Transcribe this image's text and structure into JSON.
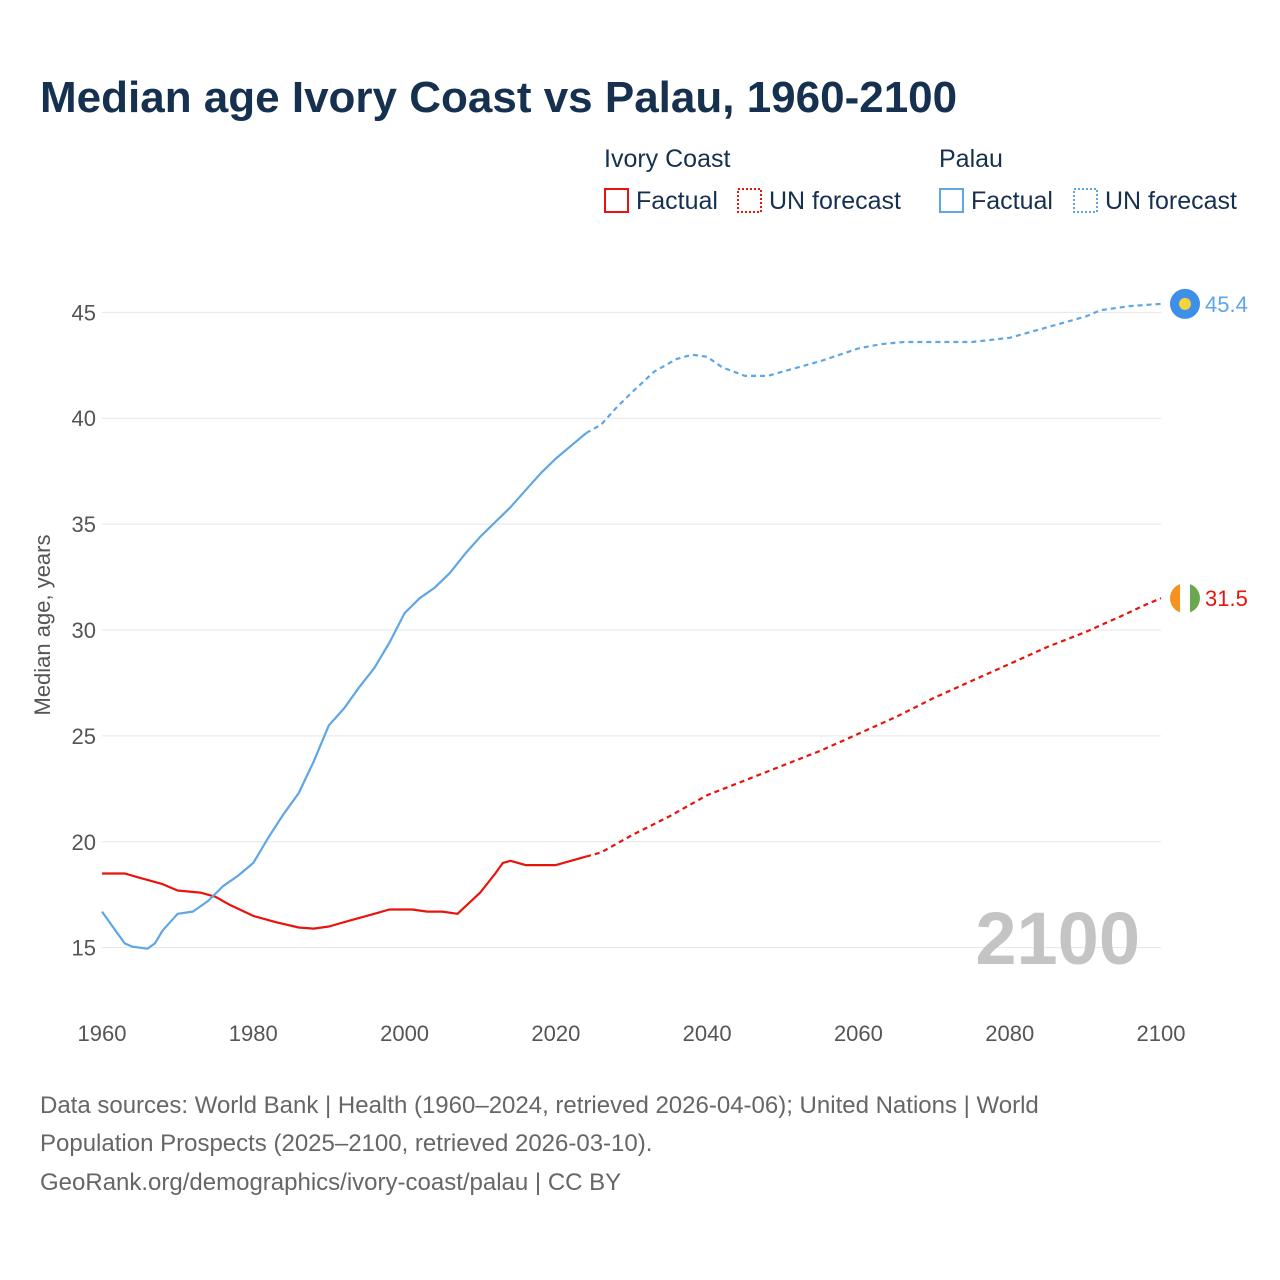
{
  "title": "Median age Ivory Coast vs Palau, 1960-2100",
  "legend": {
    "groups": [
      {
        "name": "Ivory Coast",
        "factual": "Factual",
        "forecast": "UN forecast",
        "color": "#e8140c"
      },
      {
        "name": "Palau",
        "factual": "Factual",
        "forecast": "UN forecast",
        "color": "#5ea6e6"
      }
    ]
  },
  "year_watermark": "2100",
  "end_labels": {
    "ivory_coast": "31.5",
    "palau": "45.4"
  },
  "source": {
    "line1": "Data sources: World Bank | Health (1960–2024, retrieved 2026-04-06); United Nations | World",
    "line2": "Population Prospects (2025–2100, retrieved 2026-03-10).",
    "line3": "GeoRank.org/demographics/ivory-coast/palau | CC BY"
  },
  "colors": {
    "ivory_coast": "#e8140c",
    "palau": "#5ea6e6",
    "grid": "#e6e6e6",
    "title": "#16304f"
  },
  "chart_data": {
    "type": "line",
    "title": "Median age Ivory Coast vs Palau, 1960-2100",
    "xlabel": "",
    "ylabel": "Median age, years",
    "xlim": [
      1960,
      2100
    ],
    "ylim": [
      13,
      47
    ],
    "xticks": [
      1960,
      1980,
      2000,
      2020,
      2040,
      2060,
      2080,
      2100
    ],
    "yticks": [
      15,
      20,
      25,
      30,
      35,
      40,
      45
    ],
    "forecast_start": 2024,
    "series": [
      {
        "name": "Ivory Coast",
        "color": "#e8140c",
        "points": [
          [
            1960,
            18.5
          ],
          [
            1963,
            18.5
          ],
          [
            1965,
            18.3
          ],
          [
            1968,
            18.0
          ],
          [
            1970,
            17.7
          ],
          [
            1973,
            17.6
          ],
          [
            1975,
            17.4
          ],
          [
            1977,
            17.0
          ],
          [
            1980,
            16.5
          ],
          [
            1983,
            16.2
          ],
          [
            1986,
            15.95
          ],
          [
            1988,
            15.9
          ],
          [
            1990,
            16.0
          ],
          [
            1993,
            16.3
          ],
          [
            1996,
            16.6
          ],
          [
            1998,
            16.8
          ],
          [
            2001,
            16.8
          ],
          [
            2003,
            16.7
          ],
          [
            2005,
            16.7
          ],
          [
            2007,
            16.6
          ],
          [
            2010,
            17.6
          ],
          [
            2012,
            18.5
          ],
          [
            2013,
            19.0
          ],
          [
            2014,
            19.1
          ],
          [
            2016,
            18.9
          ],
          [
            2020,
            18.9
          ],
          [
            2022,
            19.1
          ],
          [
            2024,
            19.3
          ],
          [
            2026,
            19.5
          ],
          [
            2030,
            20.3
          ],
          [
            2035,
            21.2
          ],
          [
            2040,
            22.2
          ],
          [
            2045,
            22.9
          ],
          [
            2050,
            23.6
          ],
          [
            2055,
            24.3
          ],
          [
            2060,
            25.1
          ],
          [
            2065,
            25.9
          ],
          [
            2070,
            26.8
          ],
          [
            2075,
            27.6
          ],
          [
            2080,
            28.4
          ],
          [
            2085,
            29.2
          ],
          [
            2090,
            29.9
          ],
          [
            2095,
            30.7
          ],
          [
            2098,
            31.2
          ],
          [
            2100,
            31.5
          ]
        ]
      },
      {
        "name": "Palau",
        "color": "#5ea6e6",
        "points": [
          [
            1960,
            16.7
          ],
          [
            1962,
            15.7
          ],
          [
            1963,
            15.2
          ],
          [
            1964,
            15.05
          ],
          [
            1966,
            14.95
          ],
          [
            1967,
            15.2
          ],
          [
            1968,
            15.8
          ],
          [
            1970,
            16.6
          ],
          [
            1972,
            16.7
          ],
          [
            1974,
            17.2
          ],
          [
            1976,
            17.9
          ],
          [
            1978,
            18.4
          ],
          [
            1980,
            19.0
          ],
          [
            1982,
            20.2
          ],
          [
            1984,
            21.3
          ],
          [
            1986,
            22.3
          ],
          [
            1988,
            23.8
          ],
          [
            1990,
            25.5
          ],
          [
            1992,
            26.3
          ],
          [
            1994,
            27.3
          ],
          [
            1996,
            28.2
          ],
          [
            1998,
            29.4
          ],
          [
            2000,
            30.8
          ],
          [
            2002,
            31.5
          ],
          [
            2004,
            32.0
          ],
          [
            2006,
            32.7
          ],
          [
            2008,
            33.6
          ],
          [
            2010,
            34.4
          ],
          [
            2012,
            35.1
          ],
          [
            2014,
            35.8
          ],
          [
            2016,
            36.6
          ],
          [
            2018,
            37.4
          ],
          [
            2020,
            38.1
          ],
          [
            2022,
            38.7
          ],
          [
            2024,
            39.3
          ],
          [
            2026,
            39.7
          ],
          [
            2028,
            40.5
          ],
          [
            2030,
            41.2
          ],
          [
            2033,
            42.2
          ],
          [
            2036,
            42.8
          ],
          [
            2038,
            43.0
          ],
          [
            2040,
            42.9
          ],
          [
            2042,
            42.4
          ],
          [
            2045,
            42.0
          ],
          [
            2048,
            42.0
          ],
          [
            2050,
            42.2
          ],
          [
            2055,
            42.7
          ],
          [
            2060,
            43.3
          ],
          [
            2063,
            43.5
          ],
          [
            2066,
            43.6
          ],
          [
            2070,
            43.6
          ],
          [
            2075,
            43.6
          ],
          [
            2080,
            43.8
          ],
          [
            2085,
            44.3
          ],
          [
            2090,
            44.8
          ],
          [
            2092,
            45.1
          ],
          [
            2096,
            45.3
          ],
          [
            2100,
            45.4
          ]
        ]
      }
    ]
  }
}
